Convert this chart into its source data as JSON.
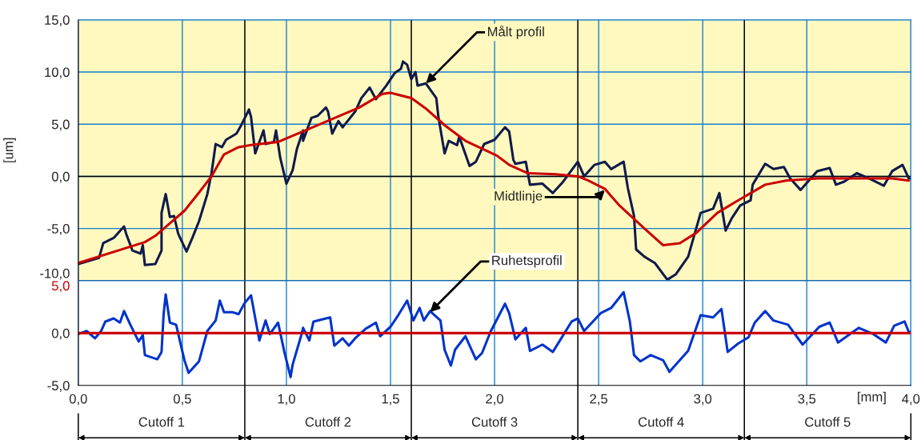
{
  "chart_data": [
    {
      "type": "line",
      "ylabel": "[um]",
      "tick_labels": "y",
      "grid": true,
      "xlim": [
        0,
        4.0
      ],
      "xticks": [
        {
          "value": 0,
          "label": null
        },
        {
          "value": 0.5,
          "label": null
        },
        {
          "value": 1.0,
          "label": null
        },
        {
          "value": 1.5,
          "label": null
        },
        {
          "value": 2.0,
          "label": null
        },
        {
          "value": 2.5,
          "label": null
        },
        {
          "value": 3.0,
          "label": null
        },
        {
          "value": 3.5,
          "label": null
        },
        {
          "value": 4.0,
          "label": null
        }
      ],
      "ylim": [
        -10,
        15
      ],
      "yticks": [
        {
          "value": -10,
          "label": "-10,0"
        },
        {
          "value": -5,
          "label": "-5,0"
        },
        {
          "value": 0,
          "label": "0,0"
        },
        {
          "value": 5,
          "label": "5,0"
        },
        {
          "value": 10,
          "label": "10,0"
        },
        {
          "value": 15,
          "label": "15,0"
        }
      ],
      "series": [
        {
          "color": "#101a4a",
          "x": [
            0,
            0.1,
            0.12,
            0.17,
            0.22,
            0.23,
            0.26,
            0.3,
            0.31,
            0.32,
            0.37,
            0.4,
            0.4,
            0.42,
            0.44,
            0.46,
            0.48,
            0.52,
            0.55,
            0.58,
            0.62,
            0.64,
            0.66,
            0.69,
            0.71,
            0.76,
            0.78,
            0.82,
            0.83,
            0.85,
            0.89,
            0.9,
            0.94,
            0.95,
            0.97,
            1.0,
            1.03,
            1.05,
            1.08,
            1.08,
            1.12,
            1.15,
            1.19,
            1.2,
            1.22,
            1.25,
            1.27,
            1.33,
            1.36,
            1.4,
            1.43,
            1.48,
            1.52,
            1.55,
            1.56,
            1.58,
            1.6,
            1.62,
            1.63,
            1.67,
            1.72,
            1.73,
            1.76,
            1.78,
            1.82,
            1.83,
            1.88,
            1.91,
            1.95,
            2.0,
            2.05,
            2.07,
            2.09,
            2.1,
            2.15,
            2.17,
            2.23,
            2.28,
            2.33,
            2.4,
            2.43,
            2.48,
            2.53,
            2.56,
            2.62,
            2.64,
            2.67,
            2.68,
            2.72,
            2.77,
            2.83,
            2.87,
            2.93,
            2.99,
            3.05,
            3.08,
            3.11,
            3.14,
            3.18,
            3.23,
            3.24,
            3.3,
            3.34,
            3.39,
            3.42,
            3.47,
            3.55,
            3.61,
            3.64,
            3.68,
            3.74,
            3.8,
            3.87,
            3.91,
            3.96,
            3.99,
            4.0
          ],
          "values": [
            -8.4,
            -7.8,
            -6.4,
            -5.9,
            -4.8,
            -5.5,
            -7.1,
            -7.4,
            -6.6,
            -8.5,
            -8.4,
            -7.1,
            -3.5,
            -1.7,
            -3.9,
            -3.8,
            -5.5,
            -7.2,
            -5.8,
            -4.3,
            -1.7,
            0.3,
            3.1,
            2.8,
            3.5,
            4.1,
            4.8,
            6.4,
            5.7,
            2.2,
            4.4,
            3.1,
            3.3,
            4.4,
            1.8,
            -0.7,
            0.6,
            2.6,
            4.4,
            3.4,
            5.6,
            5.8,
            6.6,
            6.2,
            4.1,
            5.3,
            4.7,
            6.2,
            7.5,
            8.5,
            7.4,
            8.7,
            9.9,
            10.3,
            11.0,
            10.7,
            9.3,
            10.0,
            8.7,
            8.9,
            7.5,
            5.7,
            2.2,
            3.4,
            3.0,
            3.8,
            1.0,
            1.4,
            3.1,
            3.5,
            4.7,
            4.3,
            1.6,
            1.2,
            1.4,
            -0.8,
            -0.7,
            -1.6,
            -0.5,
            1.4,
            0.0,
            1.1,
            1.4,
            0.7,
            1.4,
            -1.1,
            -3.8,
            -7.0,
            -7.7,
            -8.3,
            -9.9,
            -9.4,
            -7.7,
            -3.5,
            -3.1,
            -1.6,
            -5.2,
            -4.0,
            -2.8,
            -2.3,
            -0.8,
            1.2,
            0.7,
            0.9,
            -0.2,
            -1.3,
            0.5,
            0.8,
            -0.8,
            -0.5,
            0.3,
            -0.2,
            -0.9,
            0.5,
            1.1,
            -0.2,
            -0.2
          ]
        },
        {
          "color": "#cc0000",
          "x": [
            0,
            0.32,
            0.37,
            0.44,
            0.51,
            0.57,
            0.64,
            0.7,
            0.77,
            0.83,
            0.96,
            1.09,
            1.35,
            1.46,
            1.5,
            1.6,
            1.67,
            1.76,
            1.86,
            2.01,
            2.07,
            2.16,
            2.29,
            2.4,
            2.45,
            2.53,
            2.6,
            2.72,
            2.81,
            2.89,
            2.97,
            3.07,
            3.17,
            3.3,
            3.4,
            3.55,
            3.91,
            3.99
          ],
          "values": [
            -8.3,
            -6.3,
            -5.7,
            -4.5,
            -3.3,
            -1.8,
            0.0,
            2.1,
            2.8,
            3.0,
            3.3,
            4.4,
            6.6,
            7.9,
            8.0,
            7.5,
            6.5,
            4.9,
            3.4,
            2.0,
            1.1,
            0.3,
            0.2,
            0.0,
            -0.4,
            -1.2,
            -2.8,
            -5.0,
            -6.6,
            -6.4,
            -5.4,
            -3.5,
            -2.3,
            -0.8,
            -0.4,
            -0.2,
            -0.2,
            -0.4
          ]
        }
      ],
      "ref_lines": [
        {
          "axis": "y",
          "value": 0,
          "color": "#000000"
        },
        {
          "axis": "x",
          "value": 0.8,
          "color": "#000000"
        },
        {
          "axis": "x",
          "value": 1.6,
          "color": "#000000"
        },
        {
          "axis": "x",
          "value": 2.4,
          "color": "#000000"
        },
        {
          "axis": "x",
          "value": 3.2,
          "color": "#000000"
        }
      ],
      "annotations": [
        {
          "text": "Målt profil",
          "x": 1.67,
          "y": 8.9
        },
        {
          "text": "Midtlinje",
          "x": 2.53,
          "y": -1.3
        }
      ]
    },
    {
      "type": "line",
      "xlabel": "[mm]",
      "grid": "x",
      "xlim": [
        0,
        4.0
      ],
      "xticks": [
        {
          "value": 0,
          "label": "0,0"
        },
        {
          "value": 0.5,
          "label": "0,5"
        },
        {
          "value": 1.0,
          "label": "1,0"
        },
        {
          "value": 1.5,
          "label": "1,5"
        },
        {
          "value": 2.0,
          "label": "2,0"
        },
        {
          "value": 2.5,
          "label": "2,5"
        },
        {
          "value": 3.0,
          "label": "3,0"
        },
        {
          "value": 3.5,
          "label": "3,5"
        },
        {
          "value": 4.0,
          "label": "4,0"
        }
      ],
      "ylim": [
        -5,
        5
      ],
      "yticks": [
        {
          "value": -5,
          "label": "-5,0"
        },
        {
          "value": 0,
          "label": "0,0"
        },
        {
          "value": 5,
          "label": "5,0"
        }
      ],
      "series": [
        {
          "color": "#0033cc",
          "x": [
            0,
            0.04,
            0.08,
            0.11,
            0.13,
            0.17,
            0.2,
            0.22,
            0.25,
            0.29,
            0.31,
            0.32,
            0.38,
            0.4,
            0.41,
            0.42,
            0.44,
            0.47,
            0.51,
            0.53,
            0.58,
            0.62,
            0.66,
            0.68,
            0.7,
            0.74,
            0.77,
            0.8,
            0.83,
            0.87,
            0.9,
            0.92,
            0.96,
            0.99,
            1.02,
            1.03,
            1.07,
            1.08,
            1.11,
            1.13,
            1.21,
            1.23,
            1.27,
            1.3,
            1.33,
            1.38,
            1.43,
            1.45,
            1.5,
            1.54,
            1.58,
            1.61,
            1.64,
            1.66,
            1.69,
            1.74,
            1.76,
            1.79,
            1.81,
            1.86,
            1.91,
            1.94,
            1.98,
            2.05,
            2.07,
            2.1,
            2.15,
            2.17,
            2.23,
            2.28,
            2.37,
            2.4,
            2.43,
            2.51,
            2.56,
            2.62,
            2.65,
            2.67,
            2.7,
            2.75,
            2.81,
            2.84,
            2.93,
            2.99,
            3.05,
            3.09,
            3.12,
            3.17,
            3.22,
            3.25,
            3.3,
            3.34,
            3.41,
            3.48,
            3.56,
            3.61,
            3.65,
            3.75,
            3.82,
            3.88,
            3.92,
            3.97,
            3.99,
            4.0
          ],
          "values": [
            -0.1,
            0.2,
            -0.5,
            0.2,
            1.1,
            1.4,
            1.0,
            2.1,
            0.8,
            -0.8,
            -0.2,
            -2.1,
            -2.5,
            -1.8,
            1.8,
            3.7,
            1.0,
            0.8,
            -2.6,
            -3.8,
            -2.7,
            0.2,
            1.2,
            3.1,
            2.0,
            2.0,
            1.8,
            2.9,
            3.6,
            -0.7,
            1.2,
            -0.1,
            1.0,
            -1.8,
            -4.2,
            -3.0,
            -0.3,
            0.5,
            -0.7,
            1.1,
            1.5,
            -1.2,
            -0.5,
            -1.2,
            -0.5,
            0.4,
            1.0,
            -0.3,
            0.6,
            1.8,
            3.1,
            1.2,
            2.4,
            1.2,
            2.1,
            1.2,
            -1.6,
            -3.1,
            -1.6,
            -0.3,
            -2.5,
            -1.9,
            0.1,
            2.8,
            1.9,
            -0.6,
            0.5,
            -1.7,
            -1.1,
            -1.8,
            1.1,
            1.4,
            0.2,
            1.9,
            2.4,
            3.9,
            1.1,
            -2.1,
            -2.7,
            -2.1,
            -2.6,
            -3.7,
            -1.7,
            1.7,
            1.5,
            2.3,
            -1.8,
            -1.0,
            -0.4,
            1.0,
            2.1,
            1.2,
            0.8,
            -1.1,
            0.6,
            1.0,
            -0.9,
            0.5,
            -0.1,
            -0.9,
            0.7,
            1.1,
            0.1,
            0.1
          ]
        }
      ],
      "ref_lines": [
        {
          "axis": "y",
          "value": 0,
          "color": "#cc0000"
        },
        {
          "axis": "x",
          "value": 0.8,
          "color": "#000000"
        },
        {
          "axis": "x",
          "value": 1.6,
          "color": "#000000"
        },
        {
          "axis": "x",
          "value": 2.4,
          "color": "#000000"
        },
        {
          "axis": "x",
          "value": 3.2,
          "color": "#000000"
        }
      ],
      "annotations": [
        {
          "text": "Ruhetsprofil",
          "x": 1.69,
          "y": 2.0
        },
        "Cutoff 1",
        "Cutoff 2",
        "Cutoff 3",
        "Cutoff 4",
        "Cutoff 5"
      ]
    }
  ]
}
